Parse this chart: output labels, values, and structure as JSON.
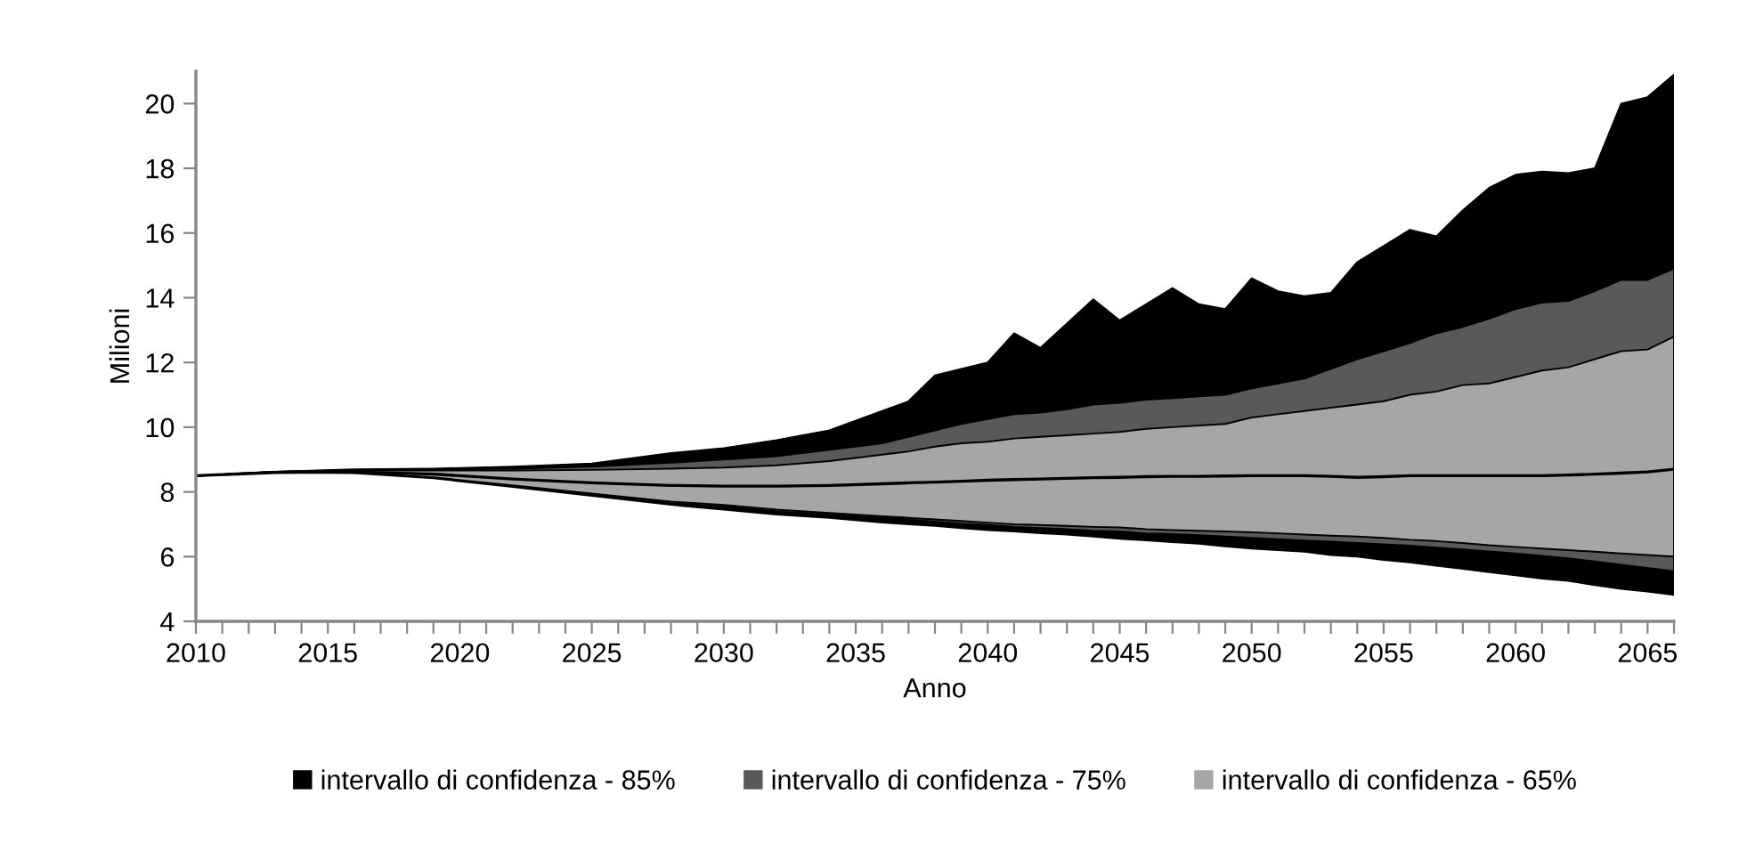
{
  "chart_data": {
    "type": "line",
    "xlabel": "Anno",
    "ylabel": "Milioni",
    "x": [
      2010,
      2013,
      2016,
      2019,
      2022,
      2025,
      2028,
      2030,
      2032,
      2034,
      2036,
      2037,
      2038,
      2039,
      2040,
      2041,
      2042,
      2043,
      2044,
      2045,
      2046,
      2047,
      2048,
      2049,
      2050,
      2051,
      2052,
      2053,
      2054,
      2055,
      2056,
      2057,
      2058,
      2059,
      2060,
      2061,
      2062,
      2063,
      2064,
      2065,
      2066
    ],
    "series": [
      {
        "name": "intervallo di confidenza - 85%",
        "color": "#000000",
        "values": [
          8.5,
          8.6,
          8.62,
          8.55,
          8.4,
          8.28,
          8.2,
          8.18,
          8.18,
          8.2,
          8.25,
          8.28,
          8.3,
          8.33,
          8.36,
          8.38,
          8.4,
          8.42,
          8.44,
          8.45,
          8.47,
          8.48,
          8.48,
          8.49,
          8.5,
          8.5,
          8.5,
          8.48,
          8.45,
          8.47,
          8.5,
          8.5,
          8.5,
          8.5,
          8.5,
          8.5,
          8.52,
          8.55,
          8.58,
          8.62,
          8.7
        ],
        "upper": [
          8.5,
          8.62,
          8.7,
          8.72,
          8.78,
          8.88,
          9.2,
          9.35,
          9.6,
          9.9,
          10.5,
          10.8,
          11.6,
          11.8,
          12.0,
          12.9,
          12.45,
          13.2,
          13.95,
          13.3,
          13.8,
          14.3,
          13.8,
          13.65,
          14.6,
          14.2,
          14.05,
          14.15,
          15.1,
          15.6,
          16.1,
          15.9,
          16.7,
          17.4,
          17.8,
          17.9,
          17.85,
          18.0,
          20.0,
          20.2,
          20.9
        ],
        "lower": [
          8.5,
          8.6,
          8.58,
          8.42,
          8.15,
          7.88,
          7.6,
          7.45,
          7.3,
          7.2,
          7.05,
          7.0,
          6.95,
          6.88,
          6.82,
          6.78,
          6.72,
          6.68,
          6.62,
          6.55,
          6.5,
          6.45,
          6.4,
          6.32,
          6.25,
          6.2,
          6.15,
          6.05,
          6.0,
          5.9,
          5.82,
          5.72,
          5.62,
          5.52,
          5.42,
          5.32,
          5.25,
          5.12,
          5.0,
          4.92,
          4.82
        ]
      },
      {
        "name": "intervallo di confidenza - 75%",
        "color": "#595959",
        "values": [
          null,
          null,
          null,
          null,
          null,
          null,
          null,
          null,
          null,
          null,
          null,
          null,
          null,
          null,
          null,
          null,
          null,
          null,
          null,
          null,
          null,
          null,
          null,
          null,
          null,
          null,
          null,
          null,
          null,
          null,
          null,
          null,
          null,
          null,
          null,
          null,
          null,
          null,
          null,
          null,
          null
        ],
        "upper": [
          8.5,
          8.62,
          8.68,
          8.7,
          8.72,
          8.78,
          8.9,
          9.0,
          9.1,
          9.3,
          9.5,
          9.7,
          9.9,
          10.1,
          10.25,
          10.4,
          10.45,
          10.55,
          10.7,
          10.75,
          10.85,
          10.9,
          10.95,
          11.0,
          11.2,
          11.35,
          11.5,
          11.8,
          12.1,
          12.35,
          12.6,
          12.9,
          13.1,
          13.35,
          13.65,
          13.85,
          13.9,
          14.2,
          14.55,
          14.55,
          14.9
        ],
        "lower": [
          8.5,
          8.6,
          8.6,
          8.44,
          8.18,
          7.92,
          7.65,
          7.55,
          7.4,
          7.3,
          7.2,
          7.15,
          7.08,
          7.02,
          6.98,
          6.92,
          6.88,
          6.85,
          6.8,
          6.78,
          6.72,
          6.7,
          6.66,
          6.62,
          6.58,
          6.54,
          6.5,
          6.46,
          6.42,
          6.38,
          6.34,
          6.28,
          6.22,
          6.16,
          6.1,
          6.02,
          5.95,
          5.85,
          5.75,
          5.65,
          5.55
        ]
      },
      {
        "name": "intervallo di confidenza - 65%",
        "color": "#a6a6a6",
        "values": [
          null,
          null,
          null,
          null,
          null,
          null,
          null,
          null,
          null,
          null,
          null,
          null,
          null,
          null,
          null,
          null,
          null,
          null,
          null,
          null,
          null,
          null,
          null,
          null,
          null,
          null,
          null,
          null,
          null,
          null,
          null,
          null,
          null,
          null,
          null,
          null,
          null,
          null,
          null,
          null,
          null
        ],
        "upper": [
          8.5,
          8.62,
          8.66,
          8.66,
          8.66,
          8.68,
          8.72,
          8.75,
          8.82,
          8.95,
          9.15,
          9.25,
          9.4,
          9.5,
          9.55,
          9.65,
          9.7,
          9.75,
          9.8,
          9.85,
          9.95,
          10.0,
          10.05,
          10.1,
          10.3,
          10.4,
          10.5,
          10.6,
          10.7,
          10.8,
          11.0,
          11.1,
          11.3,
          11.35,
          11.55,
          11.75,
          11.85,
          12.1,
          12.35,
          12.4,
          12.8
        ],
        "lower": [
          8.5,
          8.6,
          8.6,
          8.45,
          8.2,
          7.95,
          7.7,
          7.6,
          7.45,
          7.35,
          7.25,
          7.2,
          7.15,
          7.1,
          7.05,
          7.0,
          6.98,
          6.95,
          6.92,
          6.9,
          6.85,
          6.82,
          6.8,
          6.78,
          6.75,
          6.72,
          6.68,
          6.65,
          6.62,
          6.58,
          6.52,
          6.48,
          6.42,
          6.35,
          6.3,
          6.25,
          6.2,
          6.15,
          6.1,
          6.05,
          6.0
        ]
      }
    ],
    "xlim": [
      2010,
      2066
    ],
    "xticks": [
      2010,
      {
        "value": 2011,
        "label": null
      },
      {
        "value": 2012,
        "label": null
      },
      {
        "value": 2013,
        "label": null
      },
      {
        "value": 2014,
        "label": null
      },
      2015,
      {
        "value": 2016,
        "label": null
      },
      {
        "value": 2017,
        "label": null
      },
      {
        "value": 2018,
        "label": null
      },
      {
        "value": 2019,
        "label": null
      },
      2020,
      {
        "value": 2021,
        "label": null
      },
      {
        "value": 2022,
        "label": null
      },
      {
        "value": 2023,
        "label": null
      },
      {
        "value": 2024,
        "label": null
      },
      2025,
      {
        "value": 2026,
        "label": null
      },
      {
        "value": 2027,
        "label": null
      },
      {
        "value": 2028,
        "label": null
      },
      {
        "value": 2029,
        "label": null
      },
      2030,
      {
        "value": 2031,
        "label": null
      },
      {
        "value": 2032,
        "label": null
      },
      {
        "value": 2033,
        "label": null
      },
      {
        "value": 2034,
        "label": null
      },
      2035,
      {
        "value": 2036,
        "label": null
      },
      {
        "value": 2037,
        "label": null
      },
      {
        "value": 2038,
        "label": null
      },
      {
        "value": 2039,
        "label": null
      },
      2040,
      {
        "value": 2041,
        "label": null
      },
      {
        "value": 2042,
        "label": null
      },
      {
        "value": 2043,
        "label": null
      },
      {
        "value": 2044,
        "label": null
      },
      2045,
      {
        "value": 2046,
        "label": null
      },
      {
        "value": 2047,
        "label": null
      },
      {
        "value": 2048,
        "label": null
      },
      {
        "value": 2049,
        "label": null
      },
      2050,
      {
        "value": 2051,
        "label": null
      },
      {
        "value": 2052,
        "label": null
      },
      {
        "value": 2053,
        "label": null
      },
      {
        "value": 2054,
        "label": null
      },
      2055,
      {
        "value": 2056,
        "label": null
      },
      {
        "value": 2057,
        "label": null
      },
      {
        "value": 2058,
        "label": null
      },
      {
        "value": 2059,
        "label": null
      },
      2060,
      {
        "value": 2061,
        "label": null
      },
      {
        "value": 2062,
        "label": null
      },
      {
        "value": 2063,
        "label": null
      },
      {
        "value": 2064,
        "label": null
      },
      2065,
      {
        "value": 2066,
        "label": null
      }
    ],
    "ylim": [
      4,
      21
    ],
    "yticks": [
      4,
      6,
      8,
      10,
      12,
      14,
      16,
      18,
      20
    ],
    "grid": false,
    "legend": "bottom"
  }
}
